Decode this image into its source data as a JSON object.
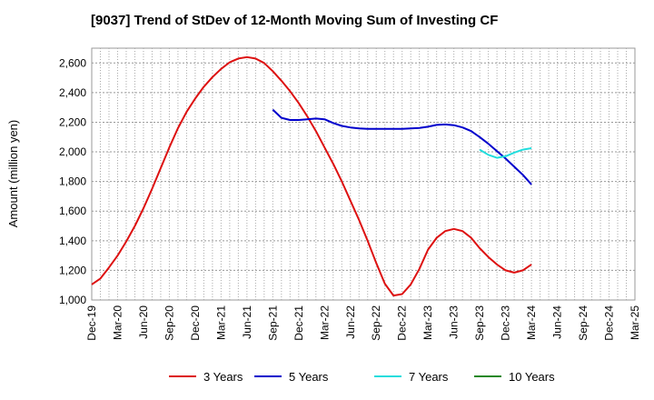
{
  "chart_data": {
    "type": "line",
    "title": "[9037]  Trend of StDev of 12-Month Moving Sum of Investing CF",
    "xlabel": "",
    "ylabel": "Amount (million yen)",
    "ylim": [
      1000,
      2700
    ],
    "yticks": [
      1000,
      1200,
      1400,
      1600,
      1800,
      2000,
      2200,
      2400,
      2600
    ],
    "ytick_labels": [
      "1,000",
      "1,200",
      "1,400",
      "1,600",
      "1,800",
      "2,000",
      "2,200",
      "2,400",
      "2,600"
    ],
    "xticks": [
      "Dec-19",
      "Mar-20",
      "Jun-20",
      "Sep-20",
      "Dec-20",
      "Mar-21",
      "Jun-21",
      "Sep-21",
      "Dec-21",
      "Mar-22",
      "Jun-22",
      "Sep-22",
      "Dec-22",
      "Mar-23",
      "Jun-23",
      "Sep-23",
      "Dec-23",
      "Mar-24",
      "Jun-24",
      "Sep-24",
      "Dec-24",
      "Mar-25"
    ],
    "x_start": "Dec-19",
    "grid": true,
    "legend_placement": "bottom",
    "series": [
      {
        "name": "3 Years",
        "color": "#dd1111",
        "x": [
          "Dec-19",
          "Jan-20",
          "Feb-20",
          "Mar-20",
          "Apr-20",
          "May-20",
          "Jun-20",
          "Jul-20",
          "Aug-20",
          "Sep-20",
          "Oct-20",
          "Nov-20",
          "Dec-20",
          "Jan-21",
          "Feb-21",
          "Mar-21",
          "Apr-21",
          "May-21",
          "Jun-21",
          "Jul-21",
          "Aug-21",
          "Sep-21",
          "Oct-21",
          "Nov-21",
          "Dec-21",
          "Jan-22",
          "Feb-22",
          "Mar-22",
          "Apr-22",
          "May-22",
          "Jun-22",
          "Jul-22",
          "Aug-22",
          "Sep-22",
          "Oct-22",
          "Nov-22",
          "Dec-22",
          "Jan-23",
          "Feb-23",
          "Mar-23",
          "Apr-23",
          "May-23",
          "Jun-23",
          "Jul-23",
          "Aug-23",
          "Sep-23",
          "Oct-23",
          "Nov-23",
          "Dec-23",
          "Jan-24",
          "Feb-24",
          "Mar-24"
        ],
        "values": [
          1105,
          1145,
          1220,
          1300,
          1395,
          1500,
          1620,
          1750,
          1890,
          2030,
          2160,
          2270,
          2360,
          2440,
          2505,
          2560,
          2605,
          2630,
          2640,
          2630,
          2600,
          2545,
          2480,
          2410,
          2330,
          2240,
          2140,
          2030,
          1920,
          1800,
          1670,
          1540,
          1400,
          1250,
          1110,
          1030,
          1040,
          1105,
          1210,
          1340,
          1420,
          1465,
          1480,
          1465,
          1420,
          1350,
          1290,
          1240,
          1200,
          1185,
          1200,
          1240
        ]
      },
      {
        "name": "5 Years",
        "color": "#0000cc",
        "x": [
          "Sep-21",
          "Oct-21",
          "Nov-21",
          "Dec-21",
          "Jan-22",
          "Feb-22",
          "Mar-22",
          "Apr-22",
          "May-22",
          "Jun-22",
          "Jul-22",
          "Aug-22",
          "Sep-22",
          "Oct-22",
          "Nov-22",
          "Dec-22",
          "Jan-23",
          "Feb-23",
          "Mar-23",
          "Apr-23",
          "May-23",
          "Jun-23",
          "Jul-23",
          "Aug-23",
          "Sep-23",
          "Oct-23",
          "Nov-23",
          "Dec-23",
          "Jan-24",
          "Feb-24",
          "Mar-24"
        ],
        "values": [
          2285,
          2230,
          2215,
          2215,
          2220,
          2225,
          2220,
          2195,
          2175,
          2165,
          2158,
          2155,
          2155,
          2155,
          2155,
          2155,
          2158,
          2162,
          2170,
          2182,
          2185,
          2180,
          2165,
          2140,
          2100,
          2055,
          2005,
          1955,
          1900,
          1845,
          1780
        ]
      },
      {
        "name": "7 Years",
        "color": "#22dddd",
        "x": [
          "Sep-23",
          "Oct-23",
          "Nov-23",
          "Dec-23",
          "Jan-24",
          "Feb-24",
          "Mar-24"
        ],
        "values": [
          2015,
          1980,
          1960,
          1970,
          1995,
          2015,
          2025
        ]
      },
      {
        "name": "10 Years",
        "color": "#228822",
        "x": [],
        "values": []
      }
    ]
  }
}
